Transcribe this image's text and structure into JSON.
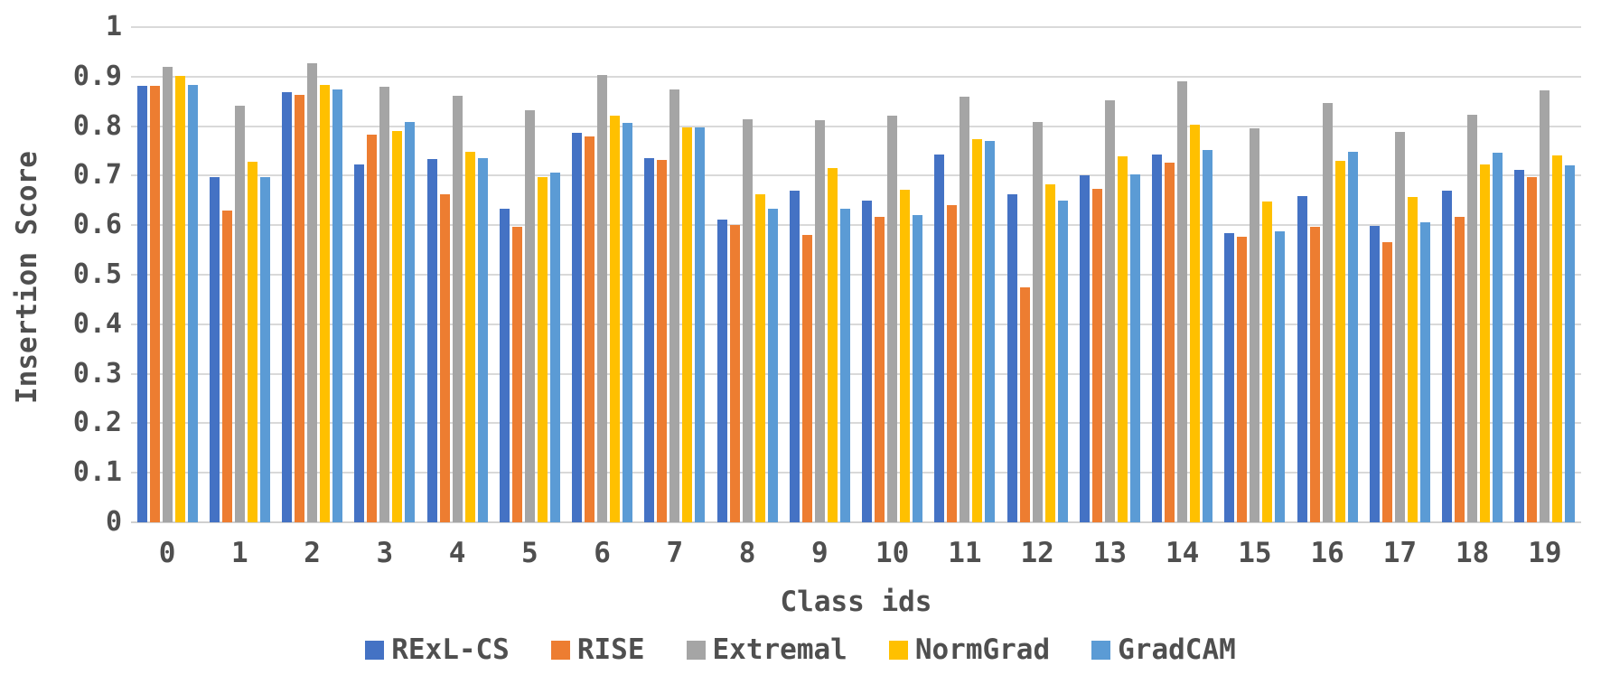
{
  "chart_data": {
    "type": "bar",
    "title": "",
    "xlabel": "Class ids",
    "ylabel": "Insertion Score",
    "ylim": [
      0,
      1
    ],
    "grid": true,
    "legend_position": "bottom",
    "y_ticks": [
      "1",
      "0.9",
      "0.8",
      "0.7",
      "0.6",
      "0.5",
      "0.4",
      "0.3",
      "0.2",
      "0.1",
      "0"
    ],
    "categories": [
      "0",
      "1",
      "2",
      "3",
      "4",
      "5",
      "6",
      "7",
      "8",
      "9",
      "10",
      "11",
      "12",
      "13",
      "14",
      "15",
      "16",
      "17",
      "18",
      "19"
    ],
    "series": [
      {
        "name": "RExL-CS",
        "color": "#4472C4",
        "values": [
          0.882,
          0.698,
          0.868,
          0.722,
          0.734,
          0.633,
          0.787,
          0.736,
          0.612,
          0.669,
          0.649,
          0.742,
          0.662,
          0.7,
          0.742,
          0.584,
          0.658,
          0.598,
          0.67,
          0.712
        ]
      },
      {
        "name": "RISE",
        "color": "#ED7D31",
        "values": [
          0.882,
          0.63,
          0.864,
          0.783,
          0.662,
          0.597,
          0.78,
          0.732,
          0.601,
          0.58,
          0.617,
          0.64,
          0.475,
          0.673,
          0.727,
          0.576,
          0.597,
          0.565,
          0.616,
          0.697
        ]
      },
      {
        "name": "Extremal",
        "color": "#A5A5A5",
        "values": [
          0.92,
          0.842,
          0.927,
          0.879,
          0.862,
          0.832,
          0.904,
          0.875,
          0.814,
          0.812,
          0.822,
          0.859,
          0.809,
          0.853,
          0.89,
          0.795,
          0.846,
          0.788,
          0.823,
          0.873
        ]
      },
      {
        "name": "NormGrad",
        "color": "#FFC000",
        "values": [
          0.902,
          0.728,
          0.884,
          0.79,
          0.749,
          0.697,
          0.822,
          0.797,
          0.662,
          0.716,
          0.671,
          0.773,
          0.683,
          0.739,
          0.803,
          0.647,
          0.73,
          0.657,
          0.723,
          0.74
        ]
      },
      {
        "name": "GradCAM",
        "color": "#5B9BD5",
        "values": [
          0.884,
          0.698,
          0.874,
          0.808,
          0.735,
          0.707,
          0.806,
          0.798,
          0.634,
          0.634,
          0.62,
          0.771,
          0.649,
          0.702,
          0.751,
          0.587,
          0.748,
          0.606,
          0.747,
          0.72
        ]
      }
    ]
  }
}
